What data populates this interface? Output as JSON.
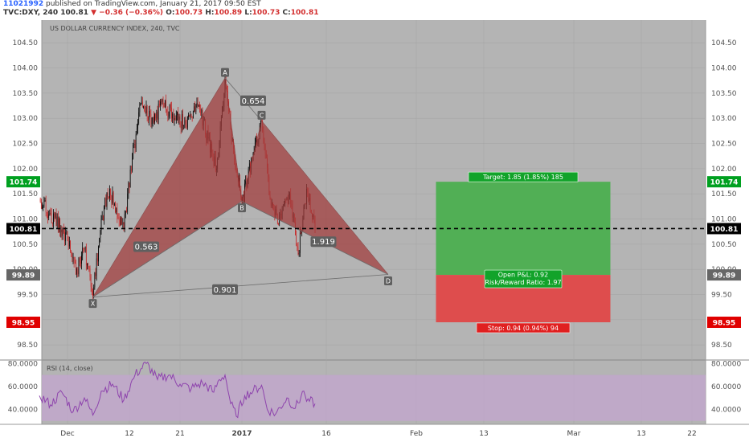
{
  "header": {
    "user": "11021992",
    "published_text": "published on TradingView.com, January 21, 2017 09:50 EST",
    "symbol": "TVC:DXY, 240",
    "last": "100.81",
    "change": "−0.36 (−0.36%)",
    "o_label": "O:",
    "o_value": "100.73",
    "h_label": "H:",
    "h_value": "100.89",
    "l_label": "L:",
    "l_value": "100.73",
    "c_label": "C:",
    "c_value": "100.81"
  },
  "colors": {
    "bg": "#b4b4b4",
    "pattern_fill": "#a13b3b",
    "target_fill": "#4caf50",
    "stop_fill": "#e04848",
    "candle_up": "#000000",
    "candle_down": "#c62828",
    "rsi_line": "#8e44ad",
    "rsi_band": "#c3a6cf",
    "label_green": "#00a020",
    "label_red": "#e00000"
  },
  "chart_data": [
    {
      "type": "candlestick",
      "title": "US DOLLAR CURRENCY INDEX, 240, TVC",
      "ylim": [
        98.2,
        104.95
      ],
      "y_ticks": [
        "98.50",
        "99.00",
        "99.50",
        "100.00",
        "100.50",
        "101.00",
        "101.50",
        "102.00",
        "102.50",
        "103.00",
        "103.50",
        "104.00",
        "104.50"
      ],
      "x_ticks": [
        {
          "label": "Dec",
          "day": 0
        },
        {
          "label": "12",
          "day": 11
        },
        {
          "label": "21",
          "day": 20
        },
        {
          "label": "2017",
          "day": 31
        },
        {
          "label": "16",
          "day": 46
        },
        {
          "label": "Feb",
          "day": 62
        },
        {
          "label": "13",
          "day": 74
        },
        {
          "label": "Mar",
          "day": 90
        },
        {
          "label": "13",
          "day": 102
        },
        {
          "label": "22",
          "day": 111
        }
      ],
      "price_path": [
        {
          "day": -5,
          "v": 101.4
        },
        {
          "day": -3,
          "v": 101.1
        },
        {
          "day": 0,
          "v": 100.6
        },
        {
          "day": 1.5,
          "v": 99.9
        },
        {
          "day": 3,
          "v": 100.4
        },
        {
          "day": 4.5,
          "v": 99.45
        },
        {
          "day": 6,
          "v": 101.0
        },
        {
          "day": 7.5,
          "v": 101.6
        },
        {
          "day": 9,
          "v": 101.0
        },
        {
          "day": 10,
          "v": 100.8
        },
        {
          "day": 11.5,
          "v": 102.2
        },
        {
          "day": 13,
          "v": 103.3
        },
        {
          "day": 15,
          "v": 102.9
        },
        {
          "day": 17,
          "v": 103.3
        },
        {
          "day": 19,
          "v": 103.0
        },
        {
          "day": 21,
          "v": 102.9
        },
        {
          "day": 23,
          "v": 103.3
        },
        {
          "day": 25,
          "v": 102.6
        },
        {
          "day": 26.5,
          "v": 102.0
        },
        {
          "day": 28,
          "v": 103.78
        },
        {
          "day": 29.5,
          "v": 102.4
        },
        {
          "day": 31,
          "v": 101.3
        },
        {
          "day": 33,
          "v": 102.3
        },
        {
          "day": 34.5,
          "v": 102.95
        },
        {
          "day": 36,
          "v": 101.4
        },
        {
          "day": 37.5,
          "v": 100.9
        },
        {
          "day": 39.5,
          "v": 101.5
        },
        {
          "day": 41,
          "v": 100.3
        },
        {
          "day": 42.5,
          "v": 101.6
        },
        {
          "day": 44,
          "v": 100.81
        }
      ],
      "pattern": {
        "points": [
          {
            "label": "X",
            "day": 4.5,
            "v": 99.45
          },
          {
            "label": "A",
            "day": 28,
            "v": 103.8
          },
          {
            "label": "B",
            "day": 31,
            "v": 101.35
          },
          {
            "label": "C",
            "day": 34.5,
            "v": 102.95
          },
          {
            "label": "D",
            "day": 57,
            "v": 99.9
          }
        ],
        "ratios": [
          {
            "label": "0.563",
            "day": 14,
            "v": 100.45
          },
          {
            "label": "0.654",
            "day": 33,
            "v": 103.35
          },
          {
            "label": "1.919",
            "day": 45.5,
            "v": 100.55
          },
          {
            "label": "0.901",
            "day": 28,
            "v": 99.6
          }
        ]
      },
      "position": {
        "entry": 99.89,
        "target": 101.74,
        "stop": 98.95,
        "day_start": 65.5,
        "day_end": 96.5,
        "target_text": "Target: 1.85 (1.85%) 185",
        "stop_text": "Stop: 0.94 (0.94%) 94",
        "pnl_text": "Open P&L: 0.92",
        "rr_text": "Risk/Reward Ratio: 1.97"
      },
      "price_labels": [
        {
          "v": 101.74,
          "text": "101.74",
          "color": "green"
        },
        {
          "v": 100.81,
          "text": "100.81",
          "color": "black"
        },
        {
          "v": 99.89,
          "text": "99.89",
          "color": "grey"
        },
        {
          "v": 98.95,
          "text": "98.95",
          "color": "red"
        }
      ],
      "current_price_line": 100.81
    },
    {
      "type": "line",
      "title": "RSI (14, close)",
      "ylim": [
        27,
        83
      ],
      "y_ticks": [
        "40.0000",
        "60.0000",
        "80.0000"
      ],
      "band": [
        30,
        70
      ],
      "series": [
        {
          "points": [
            {
              "day": -5,
              "v": 52
            },
            {
              "day": -3,
              "v": 44
            },
            {
              "day": -1,
              "v": 55
            },
            {
              "day": 1,
              "v": 38
            },
            {
              "day": 3,
              "v": 50
            },
            {
              "day": 4.5,
              "v": 35
            },
            {
              "day": 6,
              "v": 56
            },
            {
              "day": 8,
              "v": 62
            },
            {
              "day": 10,
              "v": 48
            },
            {
              "day": 12,
              "v": 70
            },
            {
              "day": 14,
              "v": 80
            },
            {
              "day": 16,
              "v": 66
            },
            {
              "day": 18,
              "v": 70
            },
            {
              "day": 20,
              "v": 62
            },
            {
              "day": 22,
              "v": 58
            },
            {
              "day": 24,
              "v": 63
            },
            {
              "day": 26,
              "v": 55
            },
            {
              "day": 27,
              "v": 66
            },
            {
              "day": 28,
              "v": 70
            },
            {
              "day": 29,
              "v": 45
            },
            {
              "day": 30,
              "v": 34
            },
            {
              "day": 31.5,
              "v": 52
            },
            {
              "day": 33,
              "v": 56
            },
            {
              "day": 34.5,
              "v": 61
            },
            {
              "day": 35.5,
              "v": 40
            },
            {
              "day": 37,
              "v": 36
            },
            {
              "day": 39,
              "v": 50
            },
            {
              "day": 40.5,
              "v": 41
            },
            {
              "day": 42,
              "v": 56
            },
            {
              "day": 43,
              "v": 47
            },
            {
              "day": 44,
              "v": 45
            }
          ]
        }
      ]
    }
  ]
}
